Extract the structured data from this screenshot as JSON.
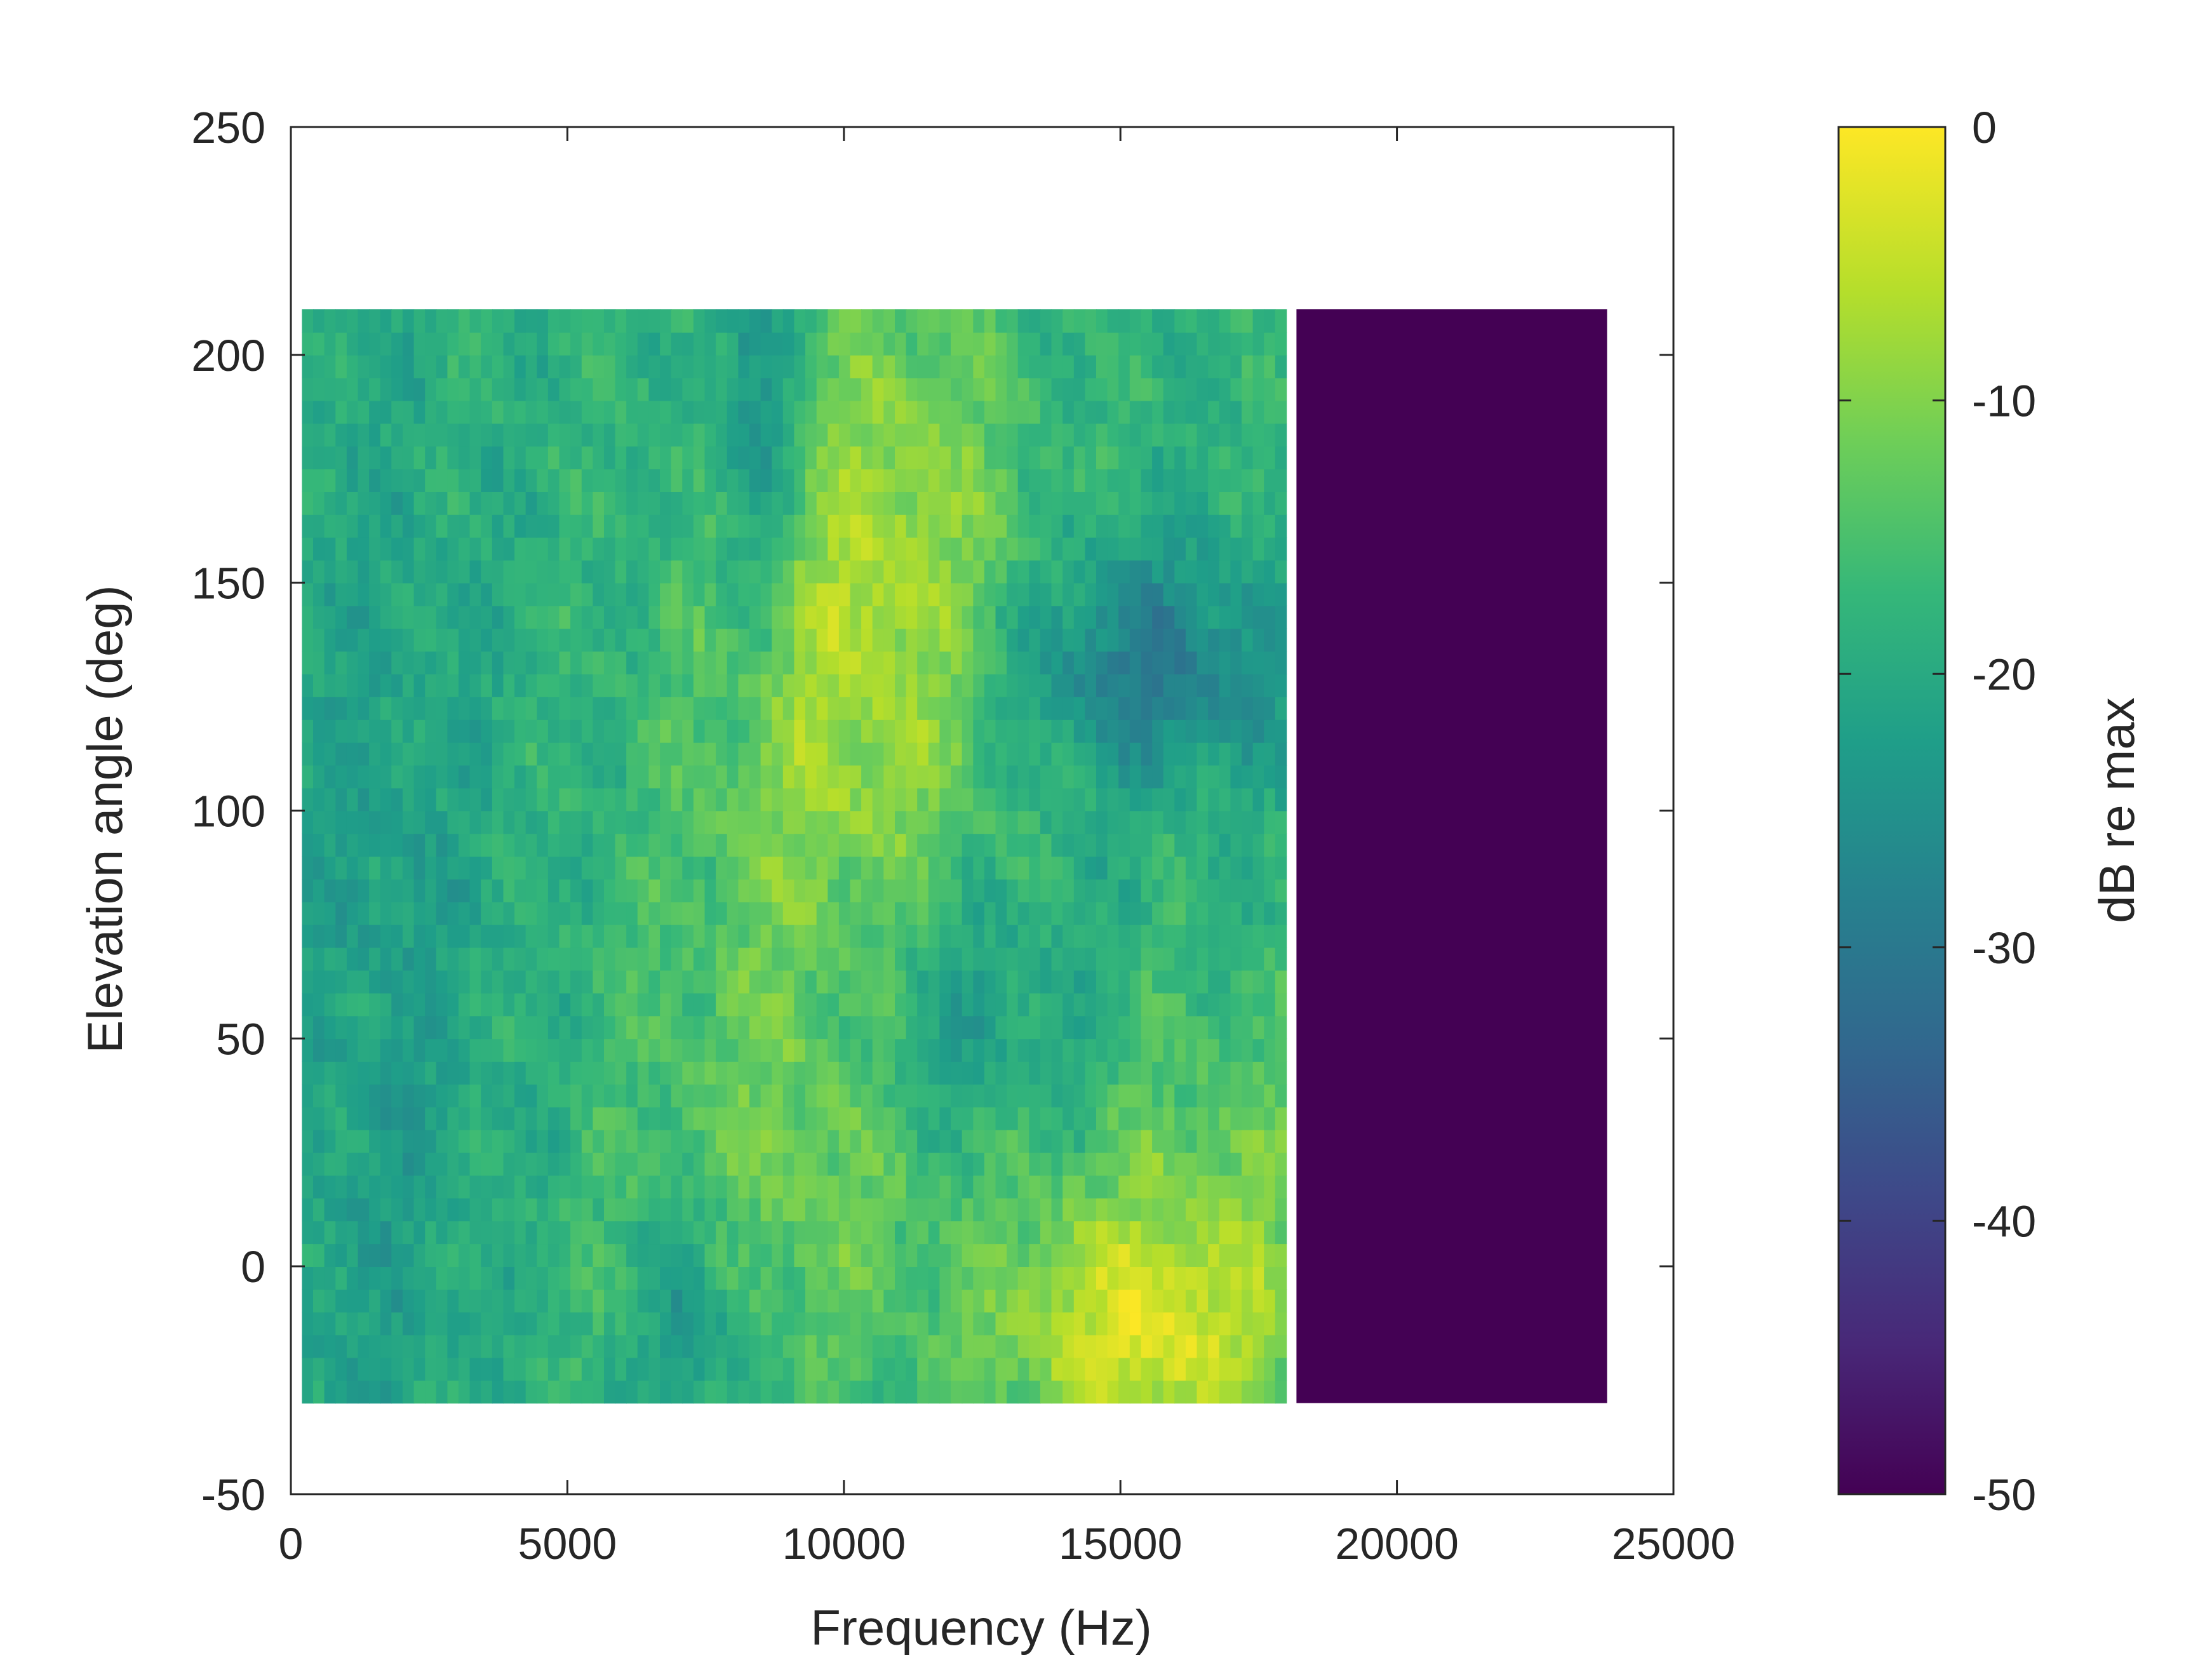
{
  "chart_data": {
    "type": "heatmap",
    "title": "",
    "xlabel": "Frequency (Hz)",
    "ylabel": "Elevation angle (deg)",
    "colorbar_label": "dB re max",
    "xlim": [
      0,
      25000
    ],
    "ylim": [
      -50,
      250
    ],
    "clim": [
      -50,
      0
    ],
    "x_ticks": [
      0,
      5000,
      10000,
      15000,
      20000,
      25000
    ],
    "x_tick_labels": [
      "0",
      "5000",
      "10000",
      "15000",
      "20000",
      "25000"
    ],
    "y_ticks": [
      -50,
      0,
      50,
      100,
      150,
      200,
      250
    ],
    "y_tick_labels": [
      "-50",
      "0",
      "50",
      "100",
      "150",
      "200",
      "250"
    ],
    "colorbar_ticks": [
      -50,
      -40,
      -30,
      -20,
      -10,
      0
    ],
    "colorbar_tick_labels": [
      "-50",
      "-40",
      "-30",
      "-20",
      "-10",
      "0"
    ],
    "colormap": "viridis",
    "grid": false,
    "data_extent": {
      "x": [
        200,
        23800
      ],
      "y": [
        -30,
        210
      ]
    },
    "frequency_cutoff_hz": 18000,
    "above_cutoff_value_db": -50,
    "description_of_features": {
      "low_frequency_band_db": -18,
      "mid_frequency_peak_db": -8,
      "high_frequency_low_elevation_peak_db": -2,
      "notch_region": {
        "x": [
          12000,
          18000
        ],
        "y": [
          110,
          150
        ],
        "value_db": -35
      },
      "dark_streak": {
        "x": [
          7500,
          9500
        ],
        "y": [
          160,
          210
        ],
        "value_db": -32
      }
    },
    "colors": {
      "axes_color": "#262626",
      "background": "#ffffff",
      "colormap_stops": [
        "#440154",
        "#482878",
        "#3e4989",
        "#31688e",
        "#26828e",
        "#1f9e89",
        "#35b779",
        "#6ece58",
        "#b5de2b",
        "#fde725"
      ]
    }
  }
}
